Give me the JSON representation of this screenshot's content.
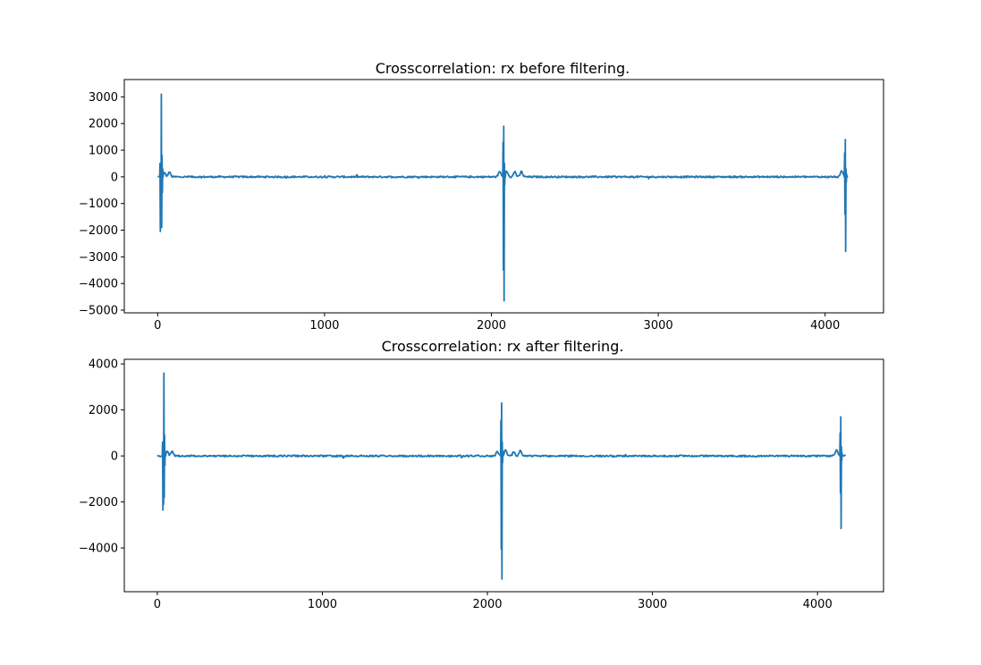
{
  "figure": {
    "background": "#ffffff"
  },
  "chart_data": [
    {
      "type": "line",
      "title": "Crosscorrelation: rx before filtering.",
      "xlabel": "",
      "ylabel": "",
      "xlim": [
        -200,
        4350
      ],
      "ylim": [
        -5100,
        3650
      ],
      "xticks": [
        0,
        1000,
        2000,
        3000,
        4000
      ],
      "yticks": [
        3000,
        2000,
        1000,
        0,
        -1000,
        -2000,
        -3000,
        -4000,
        -5000
      ],
      "grid": false,
      "legend": "none",
      "series": [
        {
          "color": "#1f77b4",
          "x_range": [
            0,
            4140
          ],
          "noise_amplitude": 30,
          "bursts": [
            {
              "x": 12,
              "values": [
                0,
                500,
                -2050,
                200,
                -1800,
                3100,
                -1900,
                800,
                -600,
                300,
                0
              ]
            },
            {
              "x": 2068,
              "values": [
                0,
                1300,
                -3500,
                1900,
                -4650,
                500,
                -300,
                200,
                0
              ]
            },
            {
              "x": 4115,
              "values": [
                0,
                900,
                -1400,
                1400,
                -2800,
                300,
                -200,
                100,
                0
              ]
            }
          ],
          "bumps": [
            {
              "x": 40,
              "value": 150
            },
            {
              "x": 70,
              "value": 180
            },
            {
              "x": 2050,
              "value": 200
            },
            {
              "x": 2090,
              "value": 230
            },
            {
              "x": 2140,
              "value": 200
            },
            {
              "x": 2180,
              "value": 200
            },
            {
              "x": 4100,
              "value": 220
            }
          ]
        }
      ]
    },
    {
      "type": "line",
      "title": "Crosscorrelation: rx after filtering.",
      "xlabel": "",
      "ylabel": "",
      "xlim": [
        -200,
        4400
      ],
      "ylim": [
        -5900,
        4200
      ],
      "xticks": [
        0,
        1000,
        2000,
        3000,
        4000
      ],
      "yticks": [
        4000,
        2000,
        0,
        -2000,
        -4000
      ],
      "grid": false,
      "legend": "none",
      "series": [
        {
          "color": "#1f77b4",
          "x_range": [
            0,
            4170
          ],
          "noise_amplitude": 35,
          "bursts": [
            {
              "x": 30,
              "values": [
                0,
                600,
                -2350,
                300,
                -2100,
                3600,
                -1800,
                900,
                -400,
                200,
                0
              ]
            },
            {
              "x": 2080,
              "values": [
                0,
                1550,
                -4050,
                2300,
                -5350,
                600,
                -300,
                200,
                0
              ]
            },
            {
              "x": 4135,
              "values": [
                0,
                1000,
                -1600,
                1700,
                -3150,
                400,
                -200,
                100,
                0
              ]
            }
          ],
          "bumps": [
            {
              "x": 60,
              "value": 180
            },
            {
              "x": 90,
              "value": 200
            },
            {
              "x": 2060,
              "value": 220
            },
            {
              "x": 2110,
              "value": 250
            },
            {
              "x": 2160,
              "value": 200
            },
            {
              "x": 2200,
              "value": 220
            },
            {
              "x": 4115,
              "value": 250
            }
          ]
        }
      ]
    }
  ]
}
